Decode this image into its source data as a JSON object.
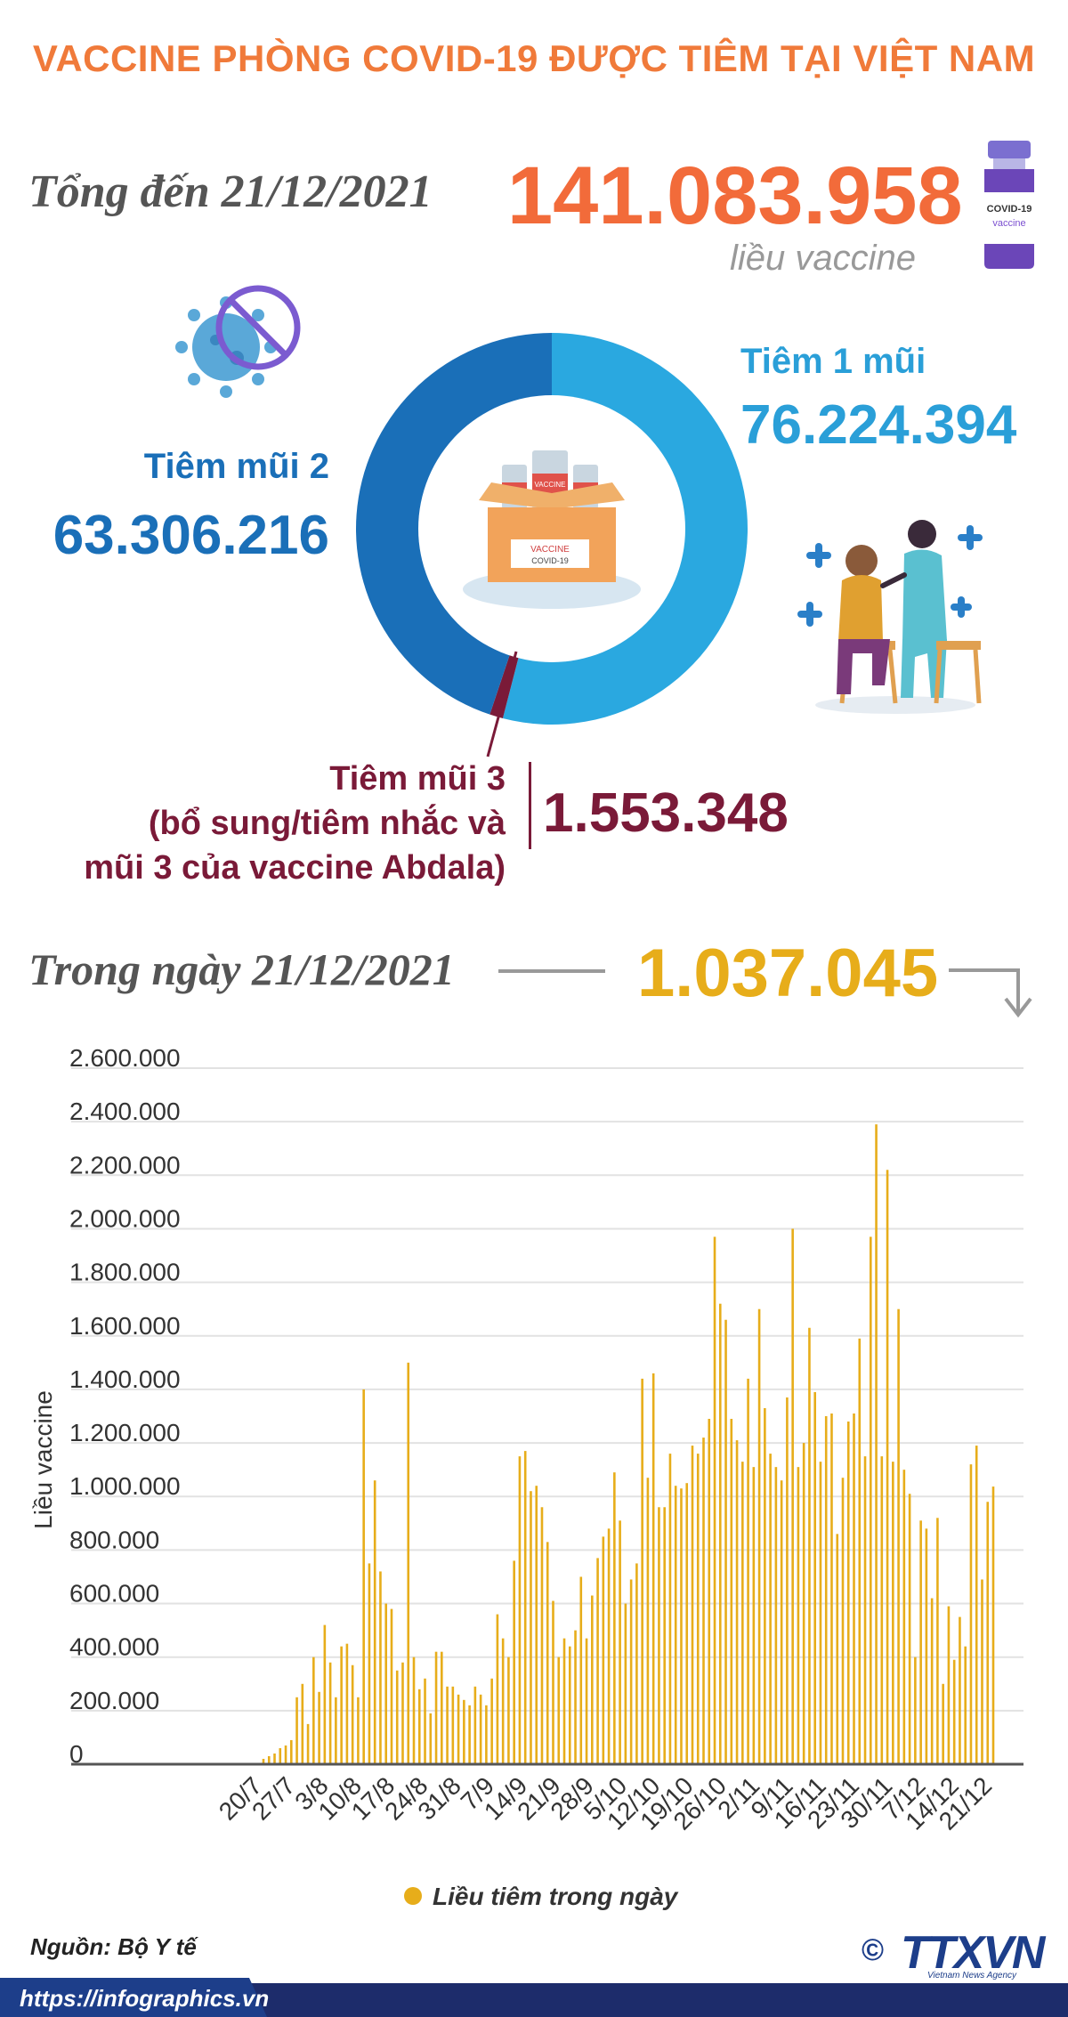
{
  "title": "VACCINE PHÒNG COVID-19 ĐƯỢC TIÊM TẠI VIỆT NAM",
  "total": {
    "label": "Tổng đến 21/12/2021",
    "value": "141.083.958",
    "unit": "liều vaccine"
  },
  "doses": {
    "dose1": {
      "label": "Tiêm 1 mũi",
      "value": "76.224.394",
      "color": "#2aa8e0",
      "amount": 76224394
    },
    "dose2": {
      "label": "Tiêm mũi 2",
      "value": "63.306.216",
      "color": "#1a6fb8",
      "amount": 63306216
    },
    "dose3": {
      "label_lines": [
        "Tiêm mũi 3",
        "(bổ sung/tiêm nhắc và",
        "mũi 3 của vaccine Abdala)"
      ],
      "value": "1.553.348",
      "color": "#7a1a38",
      "amount": 1553348
    }
  },
  "illustrations": {
    "vial": "vaccine-vial-icon",
    "vial_text": [
      "COVID-19",
      "vaccine"
    ],
    "box": "vaccine-box-icon",
    "box_text": [
      "VACCINE",
      "VACCINE",
      "COVID-19"
    ],
    "virus": "virus-crossed-icon",
    "people": "vaccination-scene-icon"
  },
  "daily": {
    "label": "Trong ngày 21/12/2021",
    "value": "1.037.045"
  },
  "chart_data": {
    "type": "bar",
    "ylabel": "Liều vaccine",
    "ylim": [
      0,
      2600000
    ],
    "yticks": [
      "0",
      "200.000",
      "400.000",
      "600.000",
      "800.000",
      "1.000.000",
      "1.200.000",
      "1.400.000",
      "1.600.000",
      "1.800.000",
      "2.000.000",
      "2.200.000",
      "2.400.000",
      "2.600.000"
    ],
    "xticks": [
      "20/7",
      "27/7",
      "3/8",
      "10/8",
      "17/8",
      "24/8",
      "31/8",
      "7/9",
      "14/9",
      "21/9",
      "28/9",
      "5/10",
      "12/10",
      "19/10",
      "26/10",
      "2/11",
      "9/11",
      "16/11",
      "23/11",
      "30/11",
      "7/12",
      "14/12",
      "21/12"
    ],
    "legend": "Liều tiêm trong ngày",
    "legend_position": "bottom",
    "bar_color": "#e7ad1a",
    "grid": true,
    "values": [
      20000,
      30000,
      40000,
      60000,
      70000,
      90000,
      250000,
      300000,
      150000,
      400000,
      270000,
      520000,
      380000,
      250000,
      440000,
      450000,
      370000,
      250000,
      1400000,
      750000,
      1060000,
      720000,
      600000,
      580000,
      350000,
      380000,
      1500000,
      400000,
      280000,
      320000,
      190000,
      420000,
      420000,
      290000,
      290000,
      260000,
      240000,
      220000,
      290000,
      260000,
      220000,
      320000,
      560000,
      470000,
      400000,
      760000,
      1150000,
      1170000,
      1020000,
      1040000,
      960000,
      830000,
      610000,
      400000,
      470000,
      440000,
      500000,
      700000,
      470000,
      630000,
      770000,
      850000,
      880000,
      1090000,
      910000,
      600000,
      690000,
      750000,
      1440000,
      1070000,
      1460000,
      960000,
      960000,
      1160000,
      1040000,
      1030000,
      1050000,
      1190000,
      1160000,
      1220000,
      1290000,
      1970000,
      1720000,
      1660000,
      1290000,
      1210000,
      1130000,
      1440000,
      1110000,
      1700000,
      1330000,
      1160000,
      1110000,
      1060000,
      1370000,
      2000000,
      1110000,
      1200000,
      1630000,
      1390000,
      1130000,
      1300000,
      1310000,
      860000,
      1070000,
      1280000,
      1310000,
      1590000,
      1150000,
      1970000,
      2390000,
      1150000,
      2220000,
      1130000,
      1700000,
      1100000,
      1010000,
      400000,
      910000,
      880000,
      620000,
      920000,
      300000,
      590000,
      390000,
      550000,
      440000,
      1120000,
      1190000,
      690000,
      980000,
      1037045
    ]
  },
  "source": "Nguồn: Bộ Y tế",
  "footer": {
    "url": "https://infographics.vn",
    "logo": "TTXVN",
    "logo_sub": "Vietnam News Agency",
    "copyright": "©"
  }
}
